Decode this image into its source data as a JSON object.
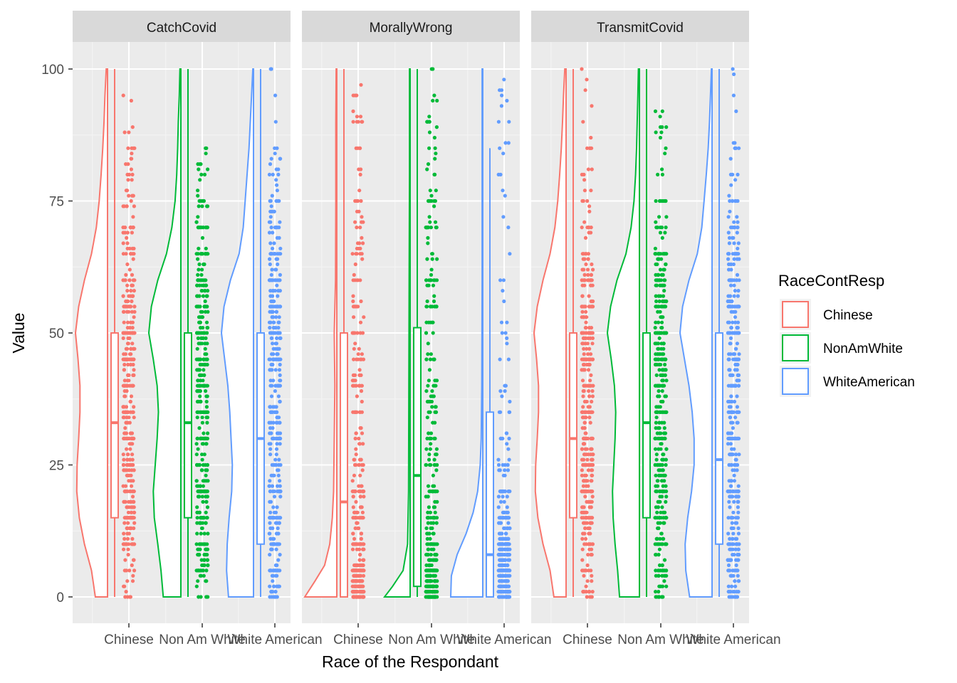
{
  "chart_data": {
    "type": "raincloud",
    "xlabel": "Race of the Respondant",
    "ylabel": "Value",
    "ylim": [
      0,
      100
    ],
    "yticks": [
      0,
      25,
      50,
      75,
      100
    ],
    "categories": [
      "Chinese",
      "Non Am White",
      "White American"
    ],
    "legend": {
      "title": "RaceContResp",
      "position": "right",
      "entries": [
        {
          "name": "Chinese",
          "color": "#F8766D"
        },
        {
          "name": "NonAmWhite",
          "color": "#00BA38"
        },
        {
          "name": "WhiteAmerican",
          "color": "#619CFF"
        }
      ]
    },
    "panels": [
      {
        "title": "CatchCovid",
        "groups": [
          {
            "category": "Chinese",
            "box": {
              "q1": 15,
              "median": 33,
              "q3": 50,
              "min": 0,
              "max": 100
            },
            "density": [
              [
                0,
                0.38
              ],
              [
                5,
                0.5
              ],
              [
                10,
                0.72
              ],
              [
                15,
                0.88
              ],
              [
                20,
                0.96
              ],
              [
                25,
                0.95
              ],
              [
                30,
                0.9
              ],
              [
                35,
                0.86
              ],
              [
                40,
                0.86
              ],
              [
                45,
                0.92
              ],
              [
                50,
                1.0
              ],
              [
                55,
                0.9
              ],
              [
                60,
                0.72
              ],
              [
                65,
                0.5
              ],
              [
                70,
                0.35
              ],
              [
                75,
                0.26
              ],
              [
                80,
                0.2
              ],
              [
                85,
                0.15
              ],
              [
                90,
                0.11
              ],
              [
                95,
                0.08
              ],
              [
                100,
                0.04
              ]
            ]
          },
          {
            "category": "Non Am White",
            "box": {
              "q1": 15,
              "median": 33,
              "q3": 50,
              "min": 0,
              "max": 100
            },
            "density": [
              [
                0,
                0.55
              ],
              [
                5,
                0.62
              ],
              [
                10,
                0.72
              ],
              [
                15,
                0.83
              ],
              [
                20,
                0.86
              ],
              [
                25,
                0.8
              ],
              [
                30,
                0.74
              ],
              [
                35,
                0.7
              ],
              [
                40,
                0.74
              ],
              [
                45,
                0.86
              ],
              [
                50,
                1.0
              ],
              [
                55,
                0.92
              ],
              [
                60,
                0.72
              ],
              [
                65,
                0.45
              ],
              [
                70,
                0.28
              ],
              [
                75,
                0.18
              ],
              [
                80,
                0.13
              ],
              [
                85,
                0.1
              ],
              [
                90,
                0.08
              ],
              [
                95,
                0.05
              ],
              [
                100,
                0.03
              ]
            ]
          },
          {
            "category": "White American",
            "box": {
              "q1": 10,
              "median": 30,
              "q3": 50,
              "min": 0,
              "max": 100
            },
            "density": [
              [
                0,
                0.78
              ],
              [
                5,
                0.84
              ],
              [
                10,
                0.82
              ],
              [
                15,
                0.76
              ],
              [
                20,
                0.68
              ],
              [
                25,
                0.66
              ],
              [
                30,
                0.7
              ],
              [
                35,
                0.74
              ],
              [
                40,
                0.8
              ],
              [
                45,
                0.9
              ],
              [
                50,
                1.0
              ],
              [
                55,
                0.92
              ],
              [
                60,
                0.72
              ],
              [
                65,
                0.45
              ],
              [
                70,
                0.32
              ],
              [
                75,
                0.26
              ],
              [
                80,
                0.2
              ],
              [
                85,
                0.14
              ],
              [
                90,
                0.1
              ],
              [
                95,
                0.06
              ],
              [
                100,
                0.02
              ]
            ]
          }
        ]
      },
      {
        "title": "MorallyWrong",
        "groups": [
          {
            "category": "Chinese",
            "box": {
              "q1": 0,
              "median": 18,
              "q3": 50,
              "min": 0,
              "max": 100
            },
            "density": [
              [
                0,
                1.0
              ],
              [
                3,
                0.68
              ],
              [
                6,
                0.38
              ],
              [
                10,
                0.22
              ],
              [
                15,
                0.14
              ],
              [
                20,
                0.1
              ],
              [
                30,
                0.08
              ],
              [
                40,
                0.06
              ],
              [
                50,
                0.08
              ],
              [
                60,
                0.04
              ],
              [
                75,
                0.03
              ],
              [
                90,
                0.03
              ],
              [
                100,
                0.02
              ]
            ]
          },
          {
            "category": "Non Am White",
            "box": {
              "q1": 2,
              "median": 23,
              "q3": 51,
              "min": 0,
              "max": 100
            },
            "density": [
              [
                0,
                0.8
              ],
              [
                2,
                0.55
              ],
              [
                5,
                0.22
              ],
              [
                10,
                0.08
              ],
              [
                20,
                0.05
              ],
              [
                40,
                0.04
              ],
              [
                60,
                0.03
              ],
              [
                80,
                0.02
              ],
              [
                100,
                0.02
              ]
            ]
          },
          {
            "category": "White American",
            "box": {
              "q1": 0,
              "median": 8,
              "q3": 35,
              "min": 0,
              "max": 85
            },
            "density": [
              [
                0,
                1.0
              ],
              [
                4,
                0.98
              ],
              [
                8,
                0.8
              ],
              [
                12,
                0.52
              ],
              [
                16,
                0.3
              ],
              [
                20,
                0.16
              ],
              [
                25,
                0.08
              ],
              [
                30,
                0.05
              ],
              [
                40,
                0.03
              ],
              [
                60,
                0.02
              ],
              [
                80,
                0.02
              ],
              [
                100,
                0.02
              ]
            ]
          }
        ]
      },
      {
        "title": "TransmitCovid",
        "groups": [
          {
            "category": "Chinese",
            "box": {
              "q1": 15,
              "median": 30,
              "q3": 50,
              "min": 0,
              "max": 100
            },
            "density": [
              [
                0,
                0.38
              ],
              [
                5,
                0.5
              ],
              [
                10,
                0.72
              ],
              [
                15,
                0.88
              ],
              [
                20,
                0.96
              ],
              [
                25,
                0.95
              ],
              [
                30,
                0.9
              ],
              [
                35,
                0.86
              ],
              [
                40,
                0.86
              ],
              [
                45,
                0.92
              ],
              [
                50,
                1.0
              ],
              [
                55,
                0.9
              ],
              [
                60,
                0.72
              ],
              [
                65,
                0.5
              ],
              [
                70,
                0.35
              ],
              [
                75,
                0.26
              ],
              [
                80,
                0.2
              ],
              [
                85,
                0.15
              ],
              [
                90,
                0.11
              ],
              [
                95,
                0.08
              ],
              [
                100,
                0.04
              ]
            ]
          },
          {
            "category": "Non Am White",
            "box": {
              "q1": 15,
              "median": 33,
              "q3": 50,
              "min": 0,
              "max": 100
            },
            "density": [
              [
                0,
                0.62
              ],
              [
                5,
                0.68
              ],
              [
                10,
                0.76
              ],
              [
                15,
                0.82
              ],
              [
                20,
                0.84
              ],
              [
                25,
                0.8
              ],
              [
                30,
                0.76
              ],
              [
                35,
                0.74
              ],
              [
                40,
                0.78
              ],
              [
                45,
                0.88
              ],
              [
                50,
                1.0
              ],
              [
                55,
                0.9
              ],
              [
                60,
                0.7
              ],
              [
                65,
                0.42
              ],
              [
                70,
                0.26
              ],
              [
                75,
                0.17
              ],
              [
                80,
                0.12
              ],
              [
                85,
                0.09
              ],
              [
                90,
                0.07
              ],
              [
                95,
                0.05
              ],
              [
                100,
                0.03
              ]
            ]
          },
          {
            "category": "White American",
            "box": {
              "q1": 10,
              "median": 26,
              "q3": 50,
              "min": 0,
              "max": 100
            },
            "density": [
              [
                0,
                0.7
              ],
              [
                5,
                0.82
              ],
              [
                10,
                0.84
              ],
              [
                15,
                0.76
              ],
              [
                20,
                0.64
              ],
              [
                25,
                0.56
              ],
              [
                30,
                0.56
              ],
              [
                35,
                0.62
              ],
              [
                40,
                0.72
              ],
              [
                45,
                0.86
              ],
              [
                50,
                1.0
              ],
              [
                55,
                0.92
              ],
              [
                60,
                0.72
              ],
              [
                65,
                0.46
              ],
              [
                70,
                0.32
              ],
              [
                75,
                0.25
              ],
              [
                80,
                0.18
              ],
              [
                85,
                0.12
              ],
              [
                90,
                0.08
              ],
              [
                95,
                0.05
              ],
              [
                100,
                0.02
              ]
            ]
          }
        ]
      }
    ]
  }
}
